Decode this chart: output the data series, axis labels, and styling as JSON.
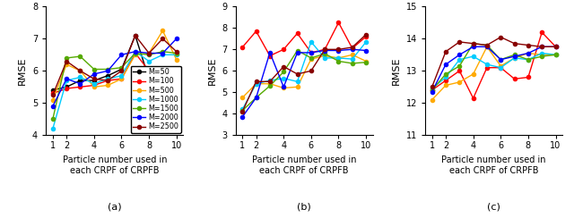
{
  "x": [
    1,
    2,
    3,
    4,
    5,
    6,
    7,
    8,
    9,
    10
  ],
  "subplot_a": {
    "M50": [
      5.4,
      5.5,
      5.7,
      5.7,
      5.85,
      6.05,
      7.1,
      5.75,
      6.0,
      6.05
    ],
    "M100": [
      5.3,
      5.45,
      5.5,
      5.55,
      5.7,
      5.75,
      6.55,
      6.0,
      5.85,
      5.8
    ],
    "M500": [
      5.1,
      6.2,
      6.0,
      5.5,
      5.55,
      5.75,
      6.5,
      6.55,
      7.25,
      6.35
    ],
    "M1000": [
      4.2,
      5.7,
      5.8,
      5.6,
      5.75,
      5.85,
      6.6,
      6.3,
      6.5,
      6.5
    ],
    "M1500": [
      4.5,
      6.4,
      6.45,
      6.05,
      6.05,
      6.1,
      6.55,
      6.5,
      6.6,
      6.55
    ],
    "M2000": [
      4.9,
      5.75,
      5.6,
      5.9,
      6.0,
      6.5,
      6.6,
      6.55,
      6.55,
      7.0
    ],
    "M2500": [
      5.25,
      6.3,
      6.0,
      5.75,
      5.7,
      6.0,
      7.1,
      6.55,
      7.0,
      6.6
    ],
    "ylim": [
      4.0,
      8.0
    ],
    "yticks": [
      4,
      5,
      6,
      7,
      8
    ],
    "label": "(a)"
  },
  "subplot_b": {
    "M50": [
      null,
      null,
      null,
      null,
      null,
      null,
      null,
      null,
      null,
      null
    ],
    "M100": [
      7.1,
      7.85,
      6.7,
      7.0,
      7.75,
      6.85,
      7.0,
      8.25,
      7.05,
      7.6
    ],
    "M500": [
      4.75,
      5.4,
      5.4,
      5.2,
      5.25,
      6.55,
      6.7,
      6.6,
      6.75,
      6.45
    ],
    "M1000": [
      4.2,
      5.4,
      5.55,
      5.65,
      5.5,
      7.35,
      6.6,
      6.6,
      6.55,
      7.35
    ],
    "M1500": [
      4.15,
      4.75,
      5.3,
      5.95,
      6.95,
      6.6,
      6.8,
      6.45,
      6.35,
      6.4
    ],
    "M2000": [
      3.85,
      4.75,
      6.85,
      5.25,
      6.85,
      6.85,
      6.95,
      6.95,
      7.0,
      6.95
    ],
    "M2500": [
      4.1,
      5.5,
      5.5,
      6.2,
      5.85,
      6.0,
      7.0,
      7.0,
      7.1,
      7.7
    ],
    "ylim": [
      3.0,
      9.0
    ],
    "yticks": [
      3,
      4,
      5,
      6,
      7,
      8,
      9
    ],
    "label": "(b)"
  },
  "subplot_c": {
    "M50": [
      null,
      null,
      null,
      null,
      null,
      null,
      null,
      null,
      null,
      null
    ],
    "M100": [
      12.4,
      12.7,
      13.0,
      12.15,
      13.1,
      13.1,
      12.75,
      12.8,
      14.2,
      13.75
    ],
    "M500": [
      12.1,
      12.55,
      12.65,
      12.9,
      13.75,
      13.15,
      13.4,
      13.55,
      13.5,
      13.5
    ],
    "M1000": [
      12.45,
      12.8,
      13.35,
      13.45,
      13.2,
      13.1,
      13.4,
      13.35,
      13.55,
      13.5
    ],
    "M1500": [
      12.4,
      12.9,
      13.15,
      13.85,
      13.8,
      13.35,
      13.5,
      13.35,
      13.45,
      13.5
    ],
    "M2000": [
      12.35,
      13.2,
      13.5,
      13.75,
      13.75,
      13.35,
      13.45,
      13.55,
      13.75,
      13.75
    ],
    "M2500": [
      12.5,
      13.6,
      13.9,
      13.85,
      13.8,
      14.05,
      13.85,
      13.8,
      13.75,
      13.75
    ],
    "ylim": [
      11.0,
      15.0
    ],
    "yticks": [
      11,
      12,
      13,
      14,
      15
    ],
    "label": "(c)"
  },
  "colors": {
    "M50": "#000000",
    "M100": "#ff0000",
    "M500": "#ffaa00",
    "M1000": "#00ccff",
    "M1500": "#55aa00",
    "M2000": "#0000ff",
    "M2500": "#880000"
  },
  "legend_labels": {
    "M50": "M=50",
    "M100": "M=100",
    "M500": "M=500",
    "M1000": "M=1000",
    "M1500": "M=1500",
    "M2000": "M=2000",
    "M2500": "M=2500"
  },
  "xlabel": "Particle number used in\neach CRPF of CRPFB",
  "ylabel": "RMSE",
  "xticks": [
    1,
    2,
    4,
    6,
    8,
    10
  ],
  "marker": "o",
  "markersize": 3.0,
  "linewidth": 1.0
}
